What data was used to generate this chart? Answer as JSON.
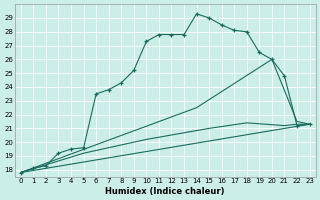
{
  "xlabel": "Humidex (Indice chaleur)",
  "background_color": "#cceee8",
  "line_color": "#1a6b5e",
  "xlim": [
    -0.5,
    23.5
  ],
  "ylim": [
    17.5,
    30.0
  ],
  "yticks": [
    18,
    19,
    20,
    21,
    22,
    23,
    24,
    25,
    26,
    27,
    28,
    29
  ],
  "xticks": [
    0,
    1,
    2,
    3,
    4,
    5,
    6,
    7,
    8,
    9,
    10,
    11,
    12,
    13,
    14,
    15,
    16,
    17,
    18,
    19,
    20,
    21,
    22,
    23
  ],
  "curve1_x": [
    0,
    1,
    2,
    3,
    4,
    5,
    6,
    7,
    8,
    9,
    10,
    11,
    12,
    13,
    14,
    15,
    16,
    17,
    18,
    19,
    20,
    21,
    22,
    23
  ],
  "curve1_y": [
    17.8,
    18.1,
    18.3,
    19.2,
    19.5,
    19.6,
    23.5,
    23.8,
    24.3,
    25.2,
    27.3,
    27.8,
    27.8,
    27.8,
    29.3,
    29.0,
    28.5,
    28.1,
    28.0,
    26.5,
    26.0,
    24.8,
    21.2,
    21.3
  ],
  "curve2_x": [
    0,
    23
  ],
  "curve2_y": [
    17.8,
    21.3
  ],
  "curve3_x": [
    0,
    14,
    20,
    22,
    23
  ],
  "curve3_y": [
    17.8,
    22.5,
    26.0,
    21.5,
    21.3
  ],
  "curve4_x": [
    0,
    5,
    10,
    15,
    18,
    21,
    22,
    23
  ],
  "curve4_y": [
    17.8,
    19.2,
    20.2,
    21.0,
    21.4,
    21.2,
    21.3,
    21.3
  ]
}
